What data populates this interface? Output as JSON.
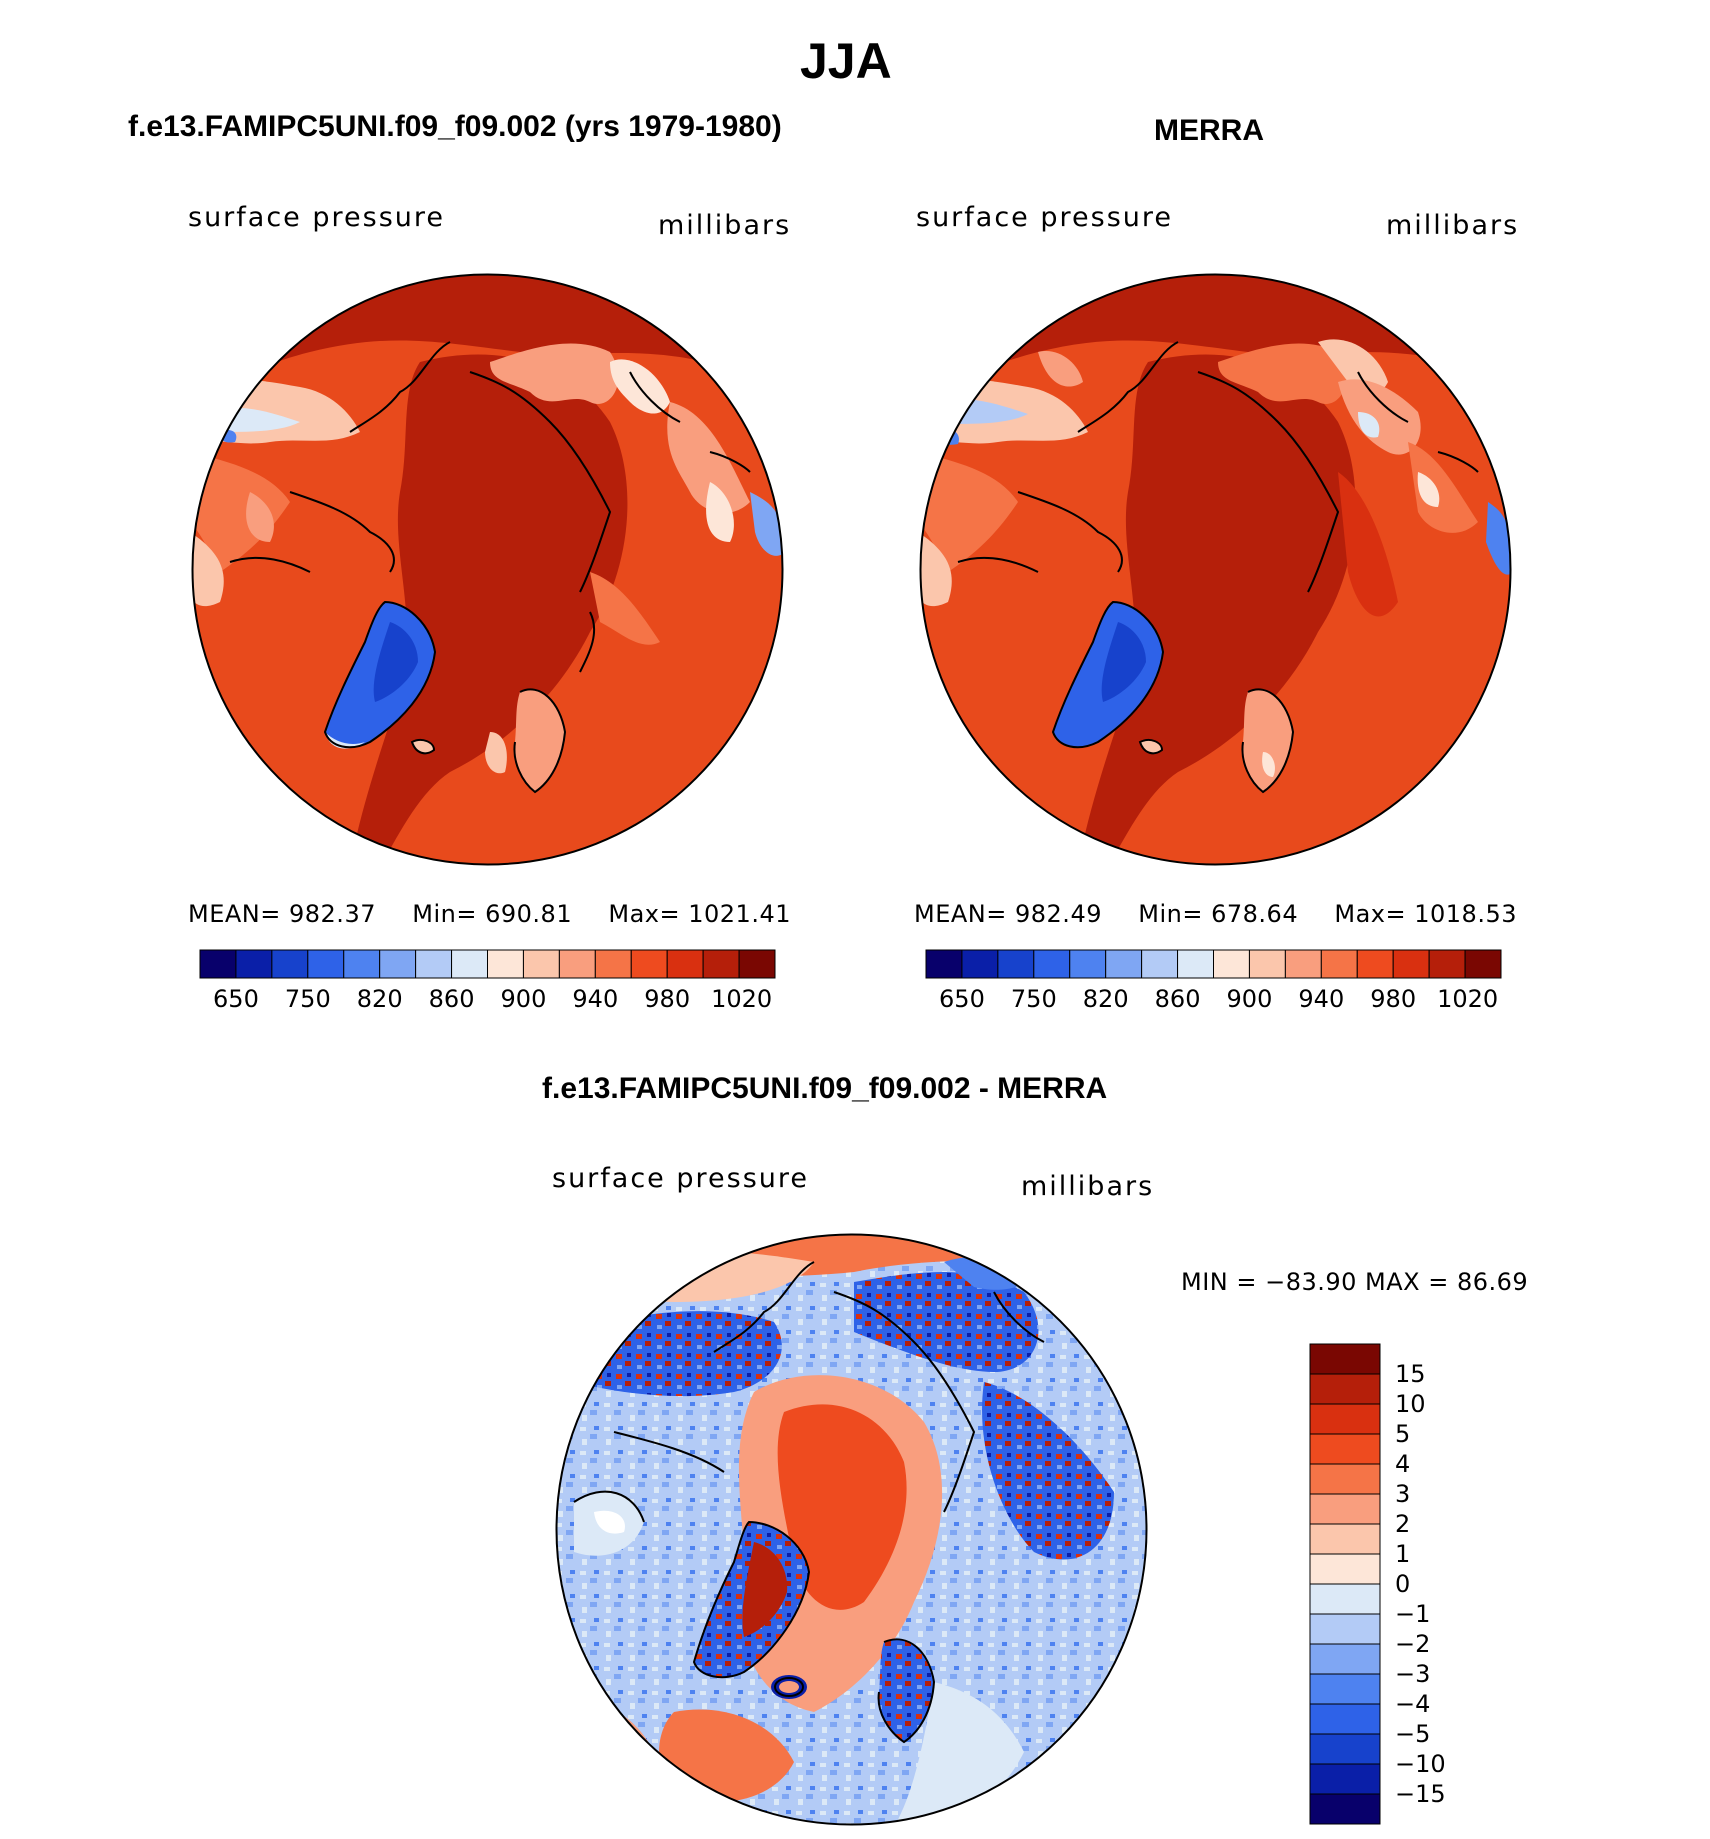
{
  "title": "JJA",
  "panels": [
    {
      "id": "model",
      "heading": "f.e13.FAMIPC5UNI.f09_f09.002 (yrs 1979-1980)",
      "variable": "surface pressure",
      "units": "millibars",
      "stats": {
        "mean_label": "MEAN=",
        "mean": "982.37",
        "min_label": "Min=",
        "min": "690.81",
        "max_label": "Max=",
        "max": "1021.41"
      }
    },
    {
      "id": "obs",
      "heading": "MERRA",
      "variable": "surface pressure",
      "units": "millibars",
      "stats": {
        "mean_label": "MEAN=",
        "mean": "982.49",
        "min_label": "Min=",
        "min": "678.64",
        "max_label": "Max=",
        "max": "1018.53"
      }
    },
    {
      "id": "diff",
      "heading": "f.e13.FAMIPC5UNI.f09_f09.002 - MERRA",
      "variable": "surface pressure",
      "units": "millibars",
      "minmax": "MIN = −83.90 MAX =   86.69"
    }
  ],
  "field_colorbar": {
    "colors": [
      "#08006b",
      "#0a1fa8",
      "#1742cc",
      "#2e62e8",
      "#4e82f0",
      "#7fa6f3",
      "#b3cbf6",
      "#dce9f7",
      "#fde6d8",
      "#fbc6ac",
      "#f99e7e",
      "#f57447",
      "#ee4b1f",
      "#d93010",
      "#b51f0a",
      "#7a0702"
    ],
    "tick_labels": [
      "650",
      "750",
      "820",
      "860",
      "900",
      "940",
      "980",
      "1020"
    ]
  },
  "diff_colorbar": {
    "colors": [
      "#7a0702",
      "#b51f0a",
      "#d93010",
      "#ee4b1f",
      "#f57447",
      "#f99e7e",
      "#fbc6ac",
      "#fde6d8",
      "#dce9f7",
      "#b3cbf6",
      "#7fa6f3",
      "#4e82f0",
      "#2e62e8",
      "#1742cc",
      "#0a1fa8",
      "#08006b"
    ],
    "tick_labels": [
      "15",
      "10",
      "5",
      "4",
      "3",
      "2",
      "1",
      "0",
      "−1",
      "−2",
      "−3",
      "−4",
      "−5",
      "−10",
      "−15"
    ]
  }
}
